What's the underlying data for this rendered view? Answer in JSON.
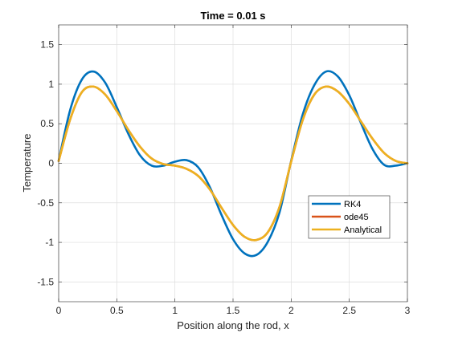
{
  "chart_data": {
    "type": "line",
    "title": "Time = 0.01 s",
    "xlabel": "Position along the rod, x",
    "ylabel": "Temperature",
    "xlim": [
      0,
      3
    ],
    "ylim": [
      -1.75,
      1.75
    ],
    "xticks": [
      0,
      0.5,
      1,
      1.5,
      2,
      2.5,
      3
    ],
    "xtick_labels": [
      "0",
      "0.5",
      "1",
      "1.5",
      "2",
      "2.5",
      "3"
    ],
    "yticks": [
      -1.5,
      -1,
      -0.5,
      0,
      0.5,
      1,
      1.5
    ],
    "ytick_labels": [
      "-1.5",
      "-1",
      "-0.5",
      "0",
      "0.5",
      "1",
      "1.5"
    ],
    "grid": true,
    "legend_position": "lower-right",
    "x": [
      0,
      0.1,
      0.2,
      0.3,
      0.4,
      0.5,
      0.6,
      0.7,
      0.8,
      0.9,
      1.0,
      1.1,
      1.2,
      1.3,
      1.4,
      1.5,
      1.6,
      1.7,
      1.8,
      1.9,
      2.0,
      2.1,
      2.2,
      2.3,
      2.4,
      2.5,
      2.6,
      2.7,
      2.8,
      2.9,
      3.0
    ],
    "series": [
      {
        "name": "RK4",
        "color": "#0072BD",
        "values": [
          0.03,
          0.68,
          1.06,
          1.16,
          1.02,
          0.71,
          0.37,
          0.1,
          -0.03,
          -0.03,
          0.02,
          0.04,
          -0.05,
          -0.3,
          -0.65,
          -0.96,
          -1.14,
          -1.16,
          -0.99,
          -0.62,
          0.03,
          0.62,
          0.99,
          1.16,
          1.1,
          0.86,
          0.51,
          0.18,
          -0.02,
          -0.03,
          0.0
        ]
      },
      {
        "name": "ode45",
        "color": "#D95319",
        "values": [
          0.03,
          0.56,
          0.9,
          0.97,
          0.87,
          0.66,
          0.42,
          0.21,
          0.06,
          -0.01,
          -0.03,
          -0.07,
          -0.16,
          -0.33,
          -0.56,
          -0.78,
          -0.93,
          -0.97,
          -0.87,
          -0.55,
          0.02,
          0.55,
          0.87,
          0.97,
          0.91,
          0.75,
          0.53,
          0.31,
          0.13,
          0.03,
          0.0
        ]
      },
      {
        "name": "Analytical",
        "color": "#EDB120",
        "values": [
          0.03,
          0.56,
          0.9,
          0.97,
          0.87,
          0.66,
          0.42,
          0.21,
          0.06,
          -0.01,
          -0.03,
          -0.07,
          -0.16,
          -0.33,
          -0.56,
          -0.78,
          -0.93,
          -0.97,
          -0.87,
          -0.55,
          0.02,
          0.55,
          0.87,
          0.97,
          0.91,
          0.75,
          0.53,
          0.31,
          0.13,
          0.03,
          0.0
        ]
      }
    ]
  }
}
